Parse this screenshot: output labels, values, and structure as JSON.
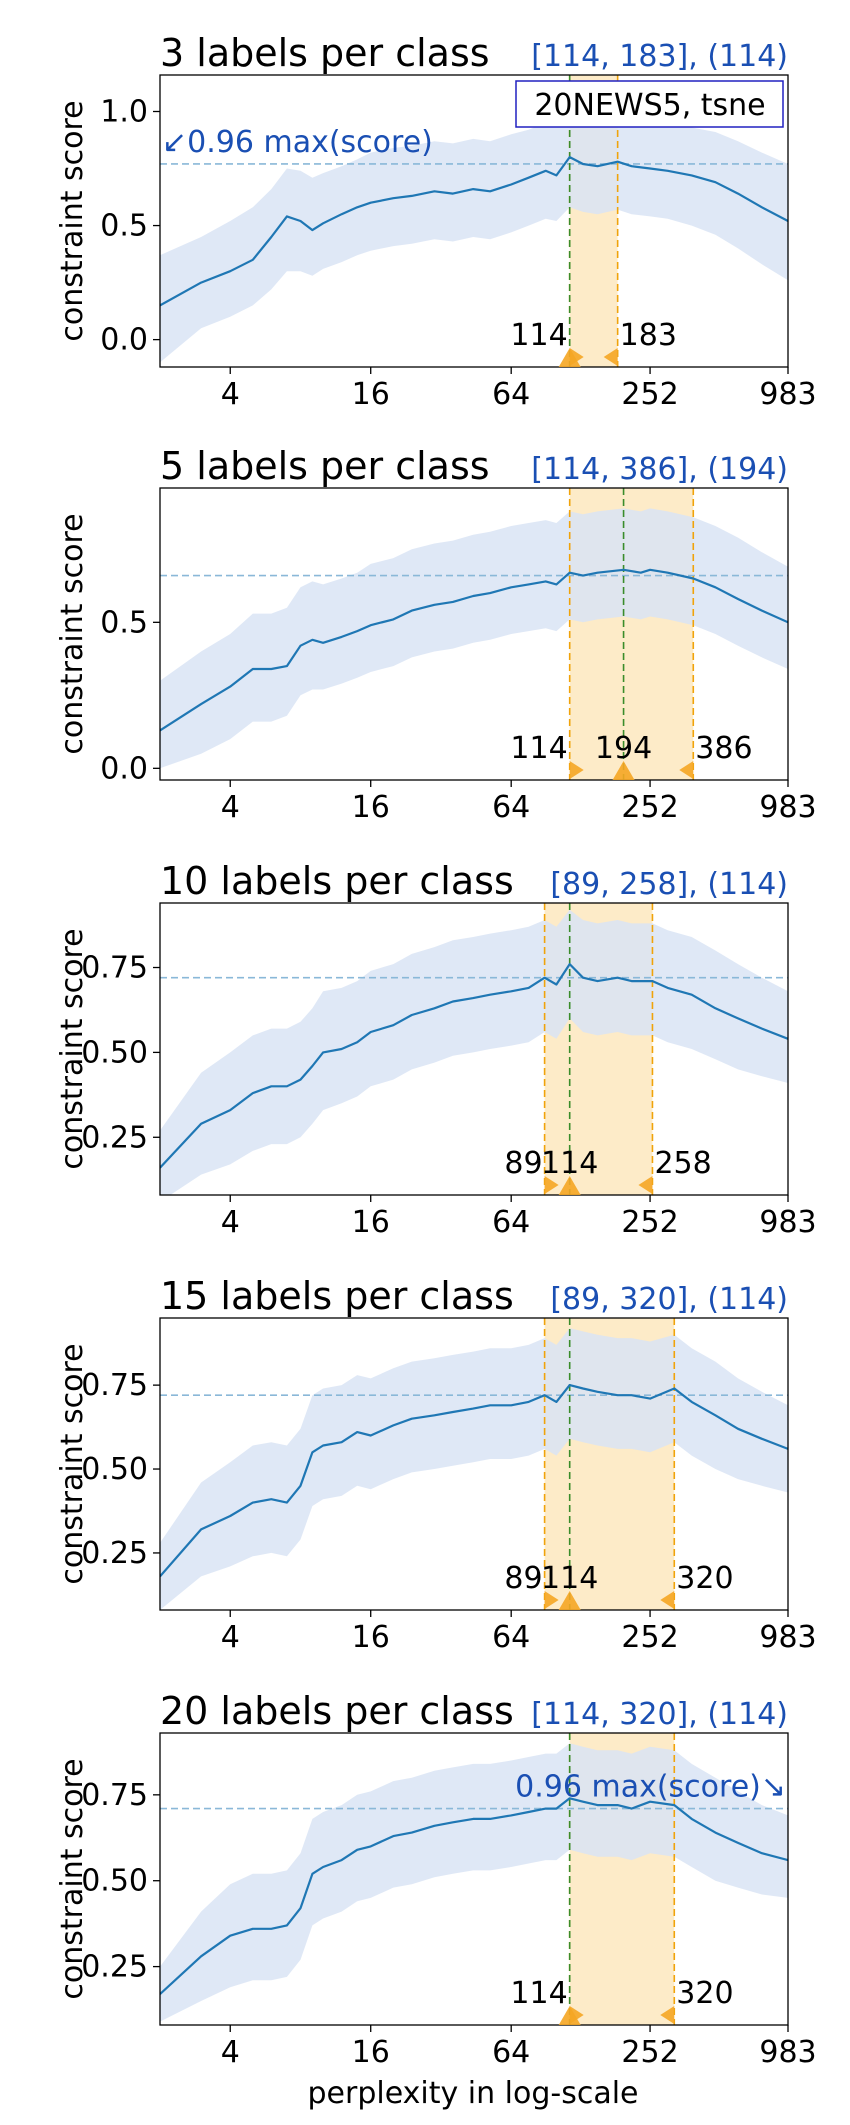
{
  "figure": {
    "xlabel": "perplexity in log-scale"
  },
  "colors": {
    "line": "#1f77b4",
    "band": "#d9e4f5",
    "range_fill": "#fdebc8",
    "range_edge": "#f0a30a",
    "best_line": "#3a8c2a",
    "max_line": "#8ab8d8",
    "annotation": "#1a4fb3",
    "marker": "#f5a623"
  },
  "chart_data": [
    {
      "type": "line",
      "title": "3 labels per class",
      "range_text": "[114, 183], (114)",
      "legend_box": "20NEWS5, tsne",
      "threshold_label": "↙0.96 max(score)",
      "ylabel": "constraint score",
      "xscale": "log",
      "xlim": [
        2,
        983
      ],
      "ylim": [
        -0.12,
        1.16
      ],
      "yticks": [
        0.0,
        0.5,
        1.0
      ],
      "ytick_labels": [
        "0.0",
        "0.5",
        "1.0"
      ],
      "xticks": [
        4,
        16,
        64,
        252,
        983
      ],
      "xtick_labels": [
        "4",
        "16",
        "64",
        "252",
        "983"
      ],
      "threshold": 0.77,
      "range": [
        114,
        183
      ],
      "best": 114,
      "range_labels": [
        "114",
        "183"
      ],
      "best_label": "",
      "series": {
        "x": [
          2,
          3,
          4,
          5,
          6,
          7,
          8,
          9,
          10,
          12,
          14,
          16,
          20,
          24,
          30,
          36,
          44,
          52,
          64,
          76,
          90,
          100,
          114,
          130,
          150,
          183,
          210,
          252,
          300,
          380,
          480,
          600,
          760,
          983
        ],
        "mean": [
          0.15,
          0.25,
          0.3,
          0.35,
          0.45,
          0.54,
          0.52,
          0.48,
          0.51,
          0.55,
          0.58,
          0.6,
          0.62,
          0.63,
          0.65,
          0.64,
          0.66,
          0.65,
          0.68,
          0.71,
          0.74,
          0.72,
          0.8,
          0.77,
          0.76,
          0.78,
          0.76,
          0.75,
          0.74,
          0.72,
          0.69,
          0.64,
          0.58,
          0.52
        ],
        "lower": [
          -0.1,
          0.05,
          0.1,
          0.15,
          0.22,
          0.3,
          0.3,
          0.28,
          0.31,
          0.34,
          0.37,
          0.39,
          0.41,
          0.42,
          0.44,
          0.43,
          0.45,
          0.44,
          0.47,
          0.5,
          0.53,
          0.52,
          0.58,
          0.56,
          0.55,
          0.57,
          0.55,
          0.54,
          0.53,
          0.5,
          0.46,
          0.4,
          0.33,
          0.26
        ],
        "upper": [
          0.37,
          0.45,
          0.52,
          0.58,
          0.66,
          0.75,
          0.74,
          0.71,
          0.73,
          0.76,
          0.79,
          0.82,
          0.84,
          0.85,
          0.87,
          0.86,
          0.88,
          0.87,
          0.9,
          0.92,
          0.95,
          0.93,
          1.02,
          0.98,
          0.97,
          0.99,
          0.97,
          0.96,
          0.95,
          0.93,
          0.91,
          0.87,
          0.82,
          0.77
        ]
      }
    },
    {
      "type": "line",
      "title": "5 labels per class",
      "range_text": "[114, 386], (194)",
      "legend_box": "",
      "threshold_label": "",
      "ylabel": "constraint score",
      "xscale": "log",
      "xlim": [
        2,
        983
      ],
      "ylim": [
        -0.04,
        0.96
      ],
      "yticks": [
        0.0,
        0.5
      ],
      "ytick_labels": [
        "0.0",
        "0.5"
      ],
      "xticks": [
        4,
        16,
        64,
        252,
        983
      ],
      "xtick_labels": [
        "4",
        "16",
        "64",
        "252",
        "983"
      ],
      "threshold": 0.66,
      "range": [
        114,
        386
      ],
      "best": 194,
      "range_labels": [
        "114",
        "386"
      ],
      "best_label": "194",
      "series": {
        "x": [
          2,
          3,
          4,
          5,
          6,
          7,
          8,
          9,
          10,
          12,
          14,
          16,
          20,
          24,
          30,
          36,
          44,
          52,
          64,
          76,
          90,
          100,
          114,
          130,
          150,
          194,
          230,
          252,
          300,
          386,
          480,
          600,
          760,
          983
        ],
        "mean": [
          0.13,
          0.22,
          0.28,
          0.34,
          0.34,
          0.35,
          0.42,
          0.44,
          0.43,
          0.45,
          0.47,
          0.49,
          0.51,
          0.54,
          0.56,
          0.57,
          0.59,
          0.6,
          0.62,
          0.63,
          0.64,
          0.63,
          0.67,
          0.66,
          0.67,
          0.68,
          0.67,
          0.68,
          0.67,
          0.65,
          0.62,
          0.58,
          0.54,
          0.5
        ],
        "lower": [
          0.0,
          0.05,
          0.1,
          0.16,
          0.16,
          0.18,
          0.25,
          0.27,
          0.27,
          0.29,
          0.31,
          0.33,
          0.35,
          0.38,
          0.4,
          0.41,
          0.43,
          0.44,
          0.46,
          0.47,
          0.48,
          0.47,
          0.51,
          0.5,
          0.51,
          0.52,
          0.51,
          0.52,
          0.51,
          0.49,
          0.46,
          0.42,
          0.38,
          0.34
        ],
        "upper": [
          0.3,
          0.4,
          0.46,
          0.53,
          0.53,
          0.55,
          0.62,
          0.64,
          0.63,
          0.65,
          0.67,
          0.7,
          0.72,
          0.75,
          0.77,
          0.78,
          0.8,
          0.81,
          0.83,
          0.84,
          0.85,
          0.84,
          0.88,
          0.87,
          0.88,
          0.89,
          0.88,
          0.89,
          0.88,
          0.86,
          0.83,
          0.79,
          0.74,
          0.69
        ]
      }
    },
    {
      "type": "line",
      "title": "10 labels per class",
      "range_text": "[89, 258], (114)",
      "legend_box": "",
      "threshold_label": "",
      "ylabel": "constraint score",
      "xscale": "log",
      "xlim": [
        2,
        983
      ],
      "ylim": [
        0.08,
        0.94
      ],
      "yticks": [
        0.25,
        0.5,
        0.75
      ],
      "ytick_labels": [
        "0.25",
        "0.50",
        "0.75"
      ],
      "xticks": [
        4,
        16,
        64,
        252,
        983
      ],
      "xtick_labels": [
        "4",
        "16",
        "64",
        "252",
        "983"
      ],
      "threshold": 0.72,
      "range": [
        89,
        258
      ],
      "best": 114,
      "range_labels": [
        "89",
        "258"
      ],
      "best_label": "114",
      "series": {
        "x": [
          2,
          3,
          4,
          5,
          6,
          7,
          8,
          9,
          10,
          12,
          14,
          16,
          20,
          24,
          30,
          36,
          44,
          52,
          64,
          76,
          89,
          100,
          114,
          130,
          150,
          183,
          210,
          258,
          300,
          380,
          480,
          600,
          760,
          983
        ],
        "mean": [
          0.16,
          0.29,
          0.33,
          0.38,
          0.4,
          0.4,
          0.42,
          0.46,
          0.5,
          0.51,
          0.53,
          0.56,
          0.58,
          0.61,
          0.63,
          0.65,
          0.66,
          0.67,
          0.68,
          0.69,
          0.72,
          0.7,
          0.76,
          0.72,
          0.71,
          0.72,
          0.71,
          0.71,
          0.69,
          0.67,
          0.63,
          0.6,
          0.57,
          0.54
        ],
        "lower": [
          0.06,
          0.14,
          0.17,
          0.21,
          0.23,
          0.23,
          0.25,
          0.29,
          0.33,
          0.35,
          0.37,
          0.4,
          0.42,
          0.45,
          0.47,
          0.49,
          0.5,
          0.51,
          0.52,
          0.53,
          0.56,
          0.54,
          0.6,
          0.56,
          0.55,
          0.56,
          0.55,
          0.55,
          0.53,
          0.51,
          0.48,
          0.45,
          0.43,
          0.41
        ],
        "upper": [
          0.27,
          0.44,
          0.5,
          0.55,
          0.57,
          0.57,
          0.59,
          0.63,
          0.68,
          0.69,
          0.71,
          0.74,
          0.76,
          0.79,
          0.81,
          0.83,
          0.84,
          0.85,
          0.86,
          0.87,
          0.89,
          0.87,
          0.92,
          0.89,
          0.88,
          0.89,
          0.88,
          0.88,
          0.86,
          0.84,
          0.8,
          0.76,
          0.72,
          0.68
        ]
      }
    },
    {
      "type": "line",
      "title": "15 labels per class",
      "range_text": "[89, 320], (114)",
      "legend_box": "",
      "threshold_label": "",
      "ylabel": "constraint score",
      "xscale": "log",
      "xlim": [
        2,
        983
      ],
      "ylim": [
        0.08,
        0.95
      ],
      "yticks": [
        0.25,
        0.5,
        0.75
      ],
      "ytick_labels": [
        "0.25",
        "0.50",
        "0.75"
      ],
      "xticks": [
        4,
        16,
        64,
        252,
        983
      ],
      "xtick_labels": [
        "4",
        "16",
        "64",
        "252",
        "983"
      ],
      "threshold": 0.72,
      "range": [
        89,
        320
      ],
      "best": 114,
      "range_labels": [
        "89",
        "320"
      ],
      "best_label": "114",
      "series": {
        "x": [
          2,
          3,
          4,
          5,
          6,
          7,
          8,
          9,
          10,
          12,
          14,
          16,
          20,
          24,
          30,
          36,
          44,
          52,
          64,
          76,
          89,
          100,
          114,
          130,
          150,
          183,
          210,
          252,
          320,
          380,
          480,
          600,
          760,
          983
        ],
        "mean": [
          0.18,
          0.32,
          0.36,
          0.4,
          0.41,
          0.4,
          0.45,
          0.55,
          0.57,
          0.58,
          0.61,
          0.6,
          0.63,
          0.65,
          0.66,
          0.67,
          0.68,
          0.69,
          0.69,
          0.7,
          0.72,
          0.7,
          0.75,
          0.74,
          0.73,
          0.72,
          0.72,
          0.71,
          0.74,
          0.7,
          0.66,
          0.62,
          0.59,
          0.56
        ],
        "lower": [
          0.08,
          0.18,
          0.21,
          0.24,
          0.25,
          0.24,
          0.29,
          0.39,
          0.41,
          0.42,
          0.45,
          0.44,
          0.47,
          0.49,
          0.5,
          0.51,
          0.52,
          0.53,
          0.53,
          0.54,
          0.56,
          0.54,
          0.59,
          0.58,
          0.57,
          0.56,
          0.56,
          0.55,
          0.58,
          0.54,
          0.5,
          0.47,
          0.45,
          0.43
        ],
        "upper": [
          0.28,
          0.46,
          0.52,
          0.57,
          0.58,
          0.57,
          0.62,
          0.72,
          0.74,
          0.75,
          0.78,
          0.77,
          0.8,
          0.82,
          0.83,
          0.84,
          0.85,
          0.86,
          0.86,
          0.87,
          0.89,
          0.87,
          0.92,
          0.91,
          0.9,
          0.89,
          0.89,
          0.88,
          0.9,
          0.86,
          0.82,
          0.77,
          0.73,
          0.69
        ]
      }
    },
    {
      "type": "line",
      "title": "20 labels per class",
      "range_text": "[114, 320], (114)",
      "legend_box": "",
      "threshold_label": "0.96 max(score)↘",
      "ylabel": "constraint score",
      "xscale": "log",
      "xlim": [
        2,
        983
      ],
      "ylim": [
        0.08,
        0.93
      ],
      "yticks": [
        0.25,
        0.5,
        0.75
      ],
      "ytick_labels": [
        "0.25",
        "0.50",
        "0.75"
      ],
      "xticks": [
        4,
        16,
        64,
        252,
        983
      ],
      "xtick_labels": [
        "4",
        "16",
        "64",
        "252",
        "983"
      ],
      "threshold": 0.71,
      "range": [
        114,
        320
      ],
      "best": 114,
      "range_labels": [
        "114",
        "320"
      ],
      "best_label": "",
      "series": {
        "x": [
          2,
          3,
          4,
          5,
          6,
          7,
          8,
          9,
          10,
          12,
          14,
          16,
          20,
          24,
          30,
          36,
          44,
          52,
          64,
          76,
          90,
          100,
          114,
          130,
          150,
          183,
          210,
          252,
          320,
          380,
          480,
          600,
          760,
          983
        ],
        "mean": [
          0.17,
          0.28,
          0.34,
          0.36,
          0.36,
          0.37,
          0.42,
          0.52,
          0.54,
          0.56,
          0.59,
          0.6,
          0.63,
          0.64,
          0.66,
          0.67,
          0.68,
          0.68,
          0.69,
          0.7,
          0.71,
          0.71,
          0.74,
          0.73,
          0.72,
          0.72,
          0.71,
          0.73,
          0.72,
          0.68,
          0.64,
          0.61,
          0.58,
          0.56
        ],
        "lower": [
          0.09,
          0.15,
          0.19,
          0.21,
          0.21,
          0.22,
          0.27,
          0.37,
          0.39,
          0.41,
          0.44,
          0.45,
          0.48,
          0.49,
          0.51,
          0.52,
          0.53,
          0.53,
          0.54,
          0.55,
          0.56,
          0.56,
          0.59,
          0.58,
          0.57,
          0.57,
          0.56,
          0.58,
          0.57,
          0.54,
          0.5,
          0.48,
          0.46,
          0.45
        ],
        "upper": [
          0.25,
          0.41,
          0.49,
          0.52,
          0.52,
          0.53,
          0.58,
          0.68,
          0.7,
          0.72,
          0.75,
          0.76,
          0.79,
          0.8,
          0.82,
          0.83,
          0.84,
          0.84,
          0.85,
          0.86,
          0.87,
          0.87,
          0.9,
          0.89,
          0.88,
          0.88,
          0.87,
          0.89,
          0.88,
          0.84,
          0.8,
          0.76,
          0.72,
          0.69
        ]
      }
    }
  ]
}
